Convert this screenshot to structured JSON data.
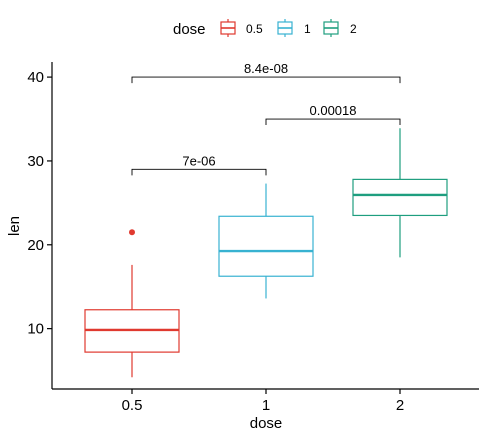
{
  "chart_data": {
    "type": "box",
    "xlabel": "dose",
    "ylabel": "len",
    "ylim": [
      2.8,
      41.8
    ],
    "yticks": [
      10,
      20,
      30,
      40
    ],
    "grid": false,
    "legend": {
      "title": "dose",
      "position": "top",
      "entries": [
        {
          "label": "0.5",
          "color": "#E0392F"
        },
        {
          "label": "1",
          "color": "#38B2D1"
        },
        {
          "label": "2",
          "color": "#1E9E7F"
        }
      ]
    },
    "categories": [
      "0.5",
      "1",
      "2"
    ],
    "boxes": [
      {
        "category": "0.5",
        "color": "#E0392F",
        "min": 4.2,
        "q1": 7.2,
        "median": 9.85,
        "q3": 12.25,
        "max": 17.6,
        "outliers": [
          21.5
        ]
      },
      {
        "category": "1",
        "color": "#38B2D1",
        "min": 13.6,
        "q1": 16.25,
        "median": 19.25,
        "q3": 23.4,
        "max": 27.3,
        "outliers": []
      },
      {
        "category": "2",
        "color": "#1E9E7F",
        "min": 18.5,
        "q1": 23.5,
        "median": 25.95,
        "q3": 27.8,
        "max": 33.9,
        "outliers": []
      }
    ],
    "comparisons": [
      {
        "from": "0.5",
        "to": "1",
        "y": 29,
        "label": "7e-06"
      },
      {
        "from": "1",
        "to": "2",
        "y": 35,
        "label": "0.00018"
      },
      {
        "from": "0.5",
        "to": "2",
        "y": 40,
        "label": "8.4e-08"
      }
    ]
  }
}
